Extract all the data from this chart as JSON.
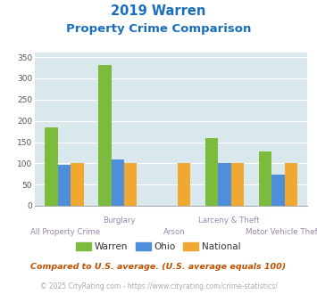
{
  "title_line1": "2019 Warren",
  "title_line2": "Property Crime Comparison",
  "warren_vals": [
    185,
    332,
    0,
    160,
    128
  ],
  "ohio_vals": [
    97,
    110,
    0,
    100,
    73
  ],
  "national_vals": [
    100,
    100,
    100,
    100,
    100
  ],
  "warren_color": "#7dbb3c",
  "ohio_color": "#4d8fdb",
  "national_color": "#f0a830",
  "bg_color": "#d9e8ed",
  "title_color": "#1a6fbd",
  "axis_label_color": "#9988aa",
  "ylim": [
    0,
    360
  ],
  "yticks": [
    0,
    50,
    100,
    150,
    200,
    250,
    300,
    350
  ],
  "footnote1": "Compared to U.S. average. (U.S. average equals 100)",
  "footnote2": "© 2025 CityRating.com - https://www.cityrating.com/crime-statistics/",
  "legend_labels": [
    "Warren",
    "Ohio",
    "National"
  ],
  "top_labels": [
    "",
    "Burglary",
    "",
    "Larceny & Theft",
    ""
  ],
  "bot_labels": [
    "All Property Crime",
    "",
    "Arson",
    "",
    "Motor Vehicle Theft"
  ]
}
